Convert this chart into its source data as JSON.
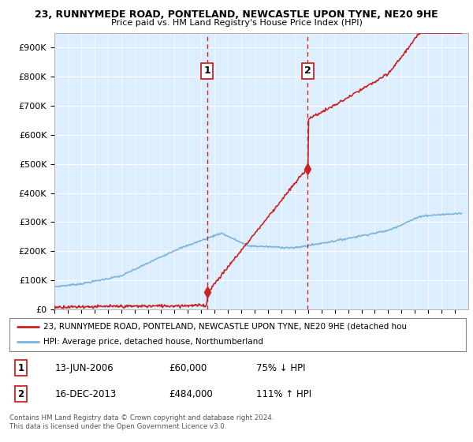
{
  "title1": "23, RUNNYMEDE ROAD, PONTELAND, NEWCASTLE UPON TYNE, NE20 9HE",
  "title2": "Price paid vs. HM Land Registry's House Price Index (HPI)",
  "ylim": [
    0,
    950000
  ],
  "yticks": [
    0,
    100000,
    200000,
    300000,
    400000,
    500000,
    600000,
    700000,
    800000,
    900000
  ],
  "ytick_labels": [
    "£0",
    "£100K",
    "£200K",
    "£300K",
    "£400K",
    "£500K",
    "£600K",
    "£700K",
    "£800K",
    "£900K"
  ],
  "hpi_color": "#7ab4d8",
  "price_color": "#cc2222",
  "bg_color": "#ddeeff",
  "sale1_date": 2006.45,
  "sale1_price": 60000,
  "sale1_label": "1",
  "sale2_date": 2013.96,
  "sale2_price": 484000,
  "sale2_label": "2",
  "legend_line1": "23, RUNNYMEDE ROAD, PONTELAND, NEWCASTLE UPON TYNE, NE20 9HE (detached hou",
  "legend_line2": "HPI: Average price, detached house, Northumberland",
  "table_row1": [
    "1",
    "13-JUN-2006",
    "£60,000",
    "75% ↓ HPI"
  ],
  "table_row2": [
    "2",
    "16-DEC-2013",
    "£484,000",
    "111% ↑ HPI"
  ],
  "footnote": "Contains HM Land Registry data © Crown copyright and database right 2024.\nThis data is licensed under the Open Government Licence v3.0.",
  "xmin": 1995,
  "xmax": 2026
}
